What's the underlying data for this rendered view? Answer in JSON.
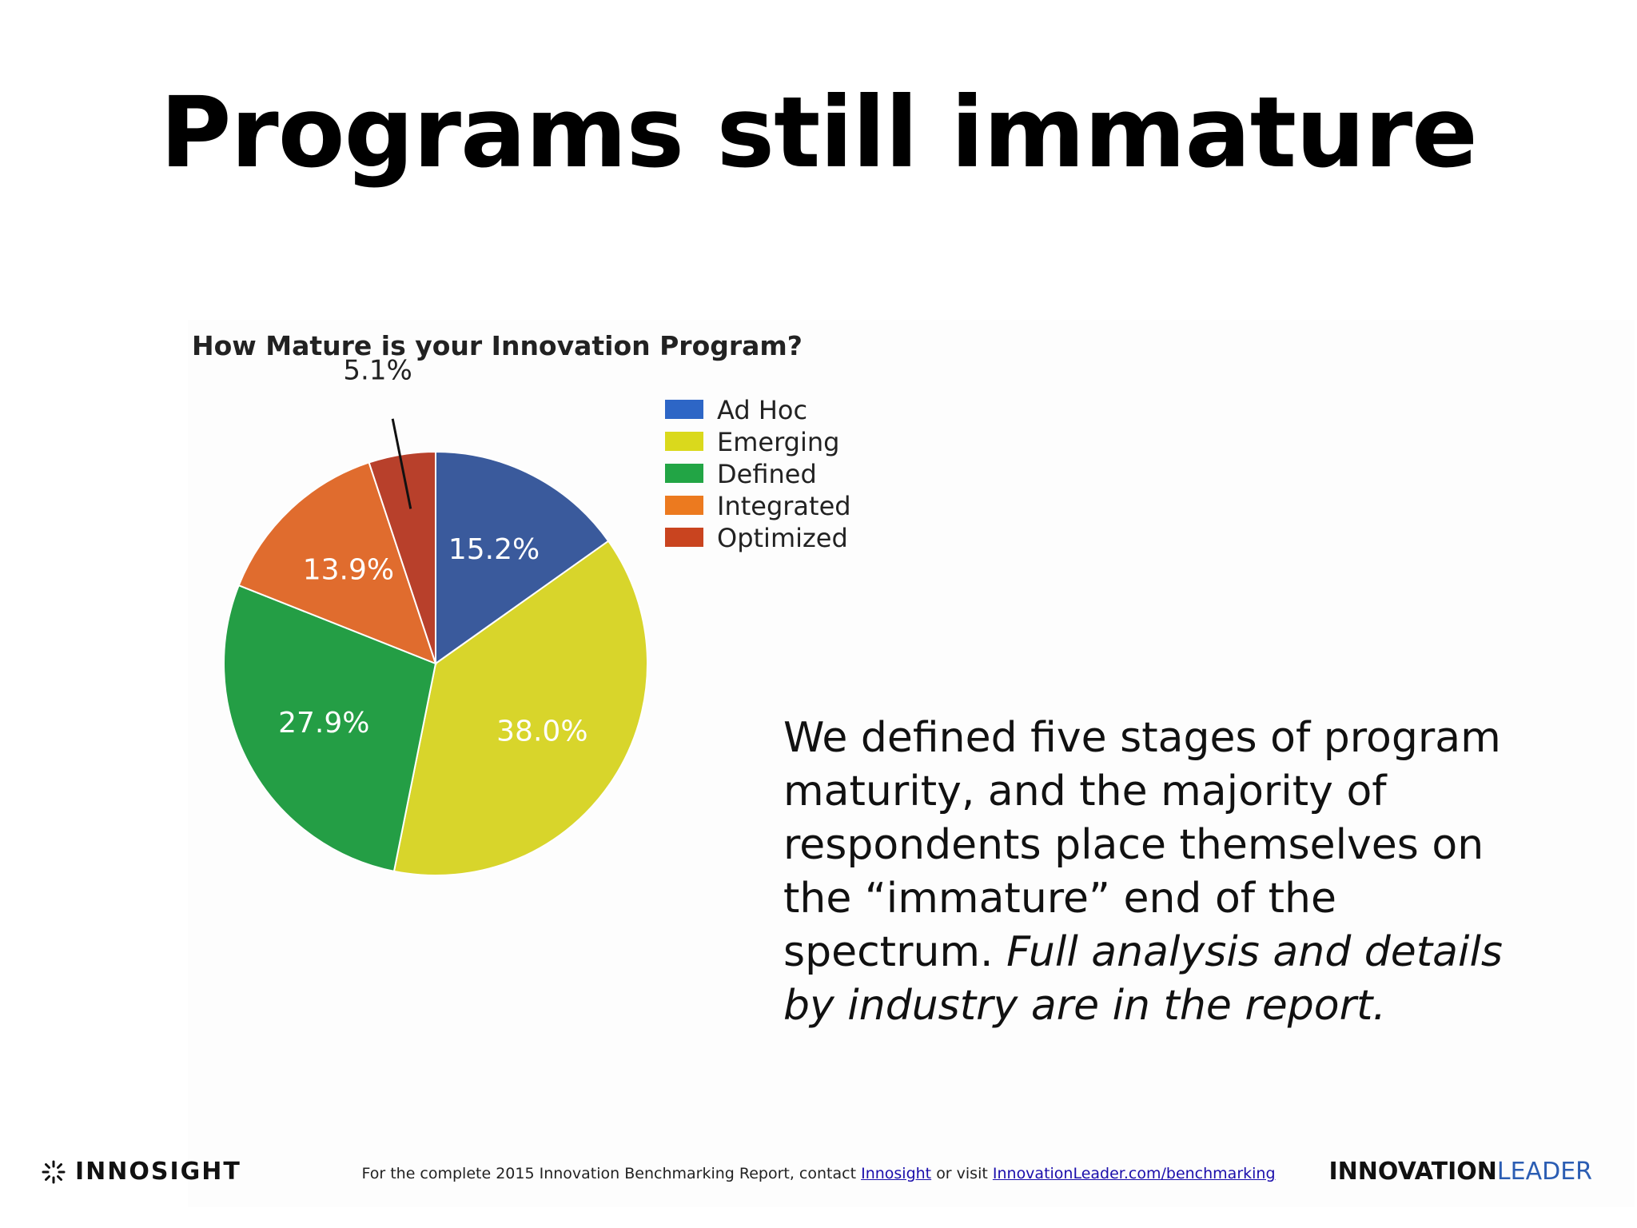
{
  "slide": {
    "title": "Programs still immature"
  },
  "chart_data": {
    "type": "pie",
    "title": "How Mature is your Innovation Program?",
    "slices": [
      {
        "name": "Ad Hoc",
        "value": 15.2,
        "label": "15.2%",
        "color": "#3a5a9c"
      },
      {
        "name": "Emerging",
        "value": 38.0,
        "label": "38.0%",
        "color": "#d8d52b"
      },
      {
        "name": "Defined",
        "value": 27.9,
        "label": "27.9%",
        "color": "#249e45"
      },
      {
        "name": "Integrated",
        "value": 13.9,
        "label": "13.9%",
        "color": "#e06c2e"
      },
      {
        "name": "Optimized",
        "value": 5.1,
        "label": "5.1%",
        "color": "#b8402b"
      }
    ],
    "legend": {
      "placement": "top-right",
      "items": [
        {
          "label": "Ad Hoc",
          "color": "#2d66c6"
        },
        {
          "label": "Emerging",
          "color": "#dad91c"
        },
        {
          "label": "Defined",
          "color": "#22a545"
        },
        {
          "label": "Integrated",
          "color": "#ec7a1f"
        },
        {
          "label": "Optimized",
          "color": "#c9441f"
        }
      ]
    }
  },
  "body": {
    "text_plain": "We defined five stages of program maturity, and the majority of respondents place themselves on the “immature” end of the spectrum.",
    "text_italic": "Full analysis and details by industry are in the report."
  },
  "footer": {
    "prefix": "For the complete 2015 Innovation Benchmarking Report, contact",
    "link1": "Innosight",
    "middle": "or visit",
    "link2": "InnovationLeader.com/benchmarking",
    "logo_left": "INNOSIGHT",
    "logo_right_a": "INNOVATION",
    "logo_right_b": "LEADER"
  }
}
